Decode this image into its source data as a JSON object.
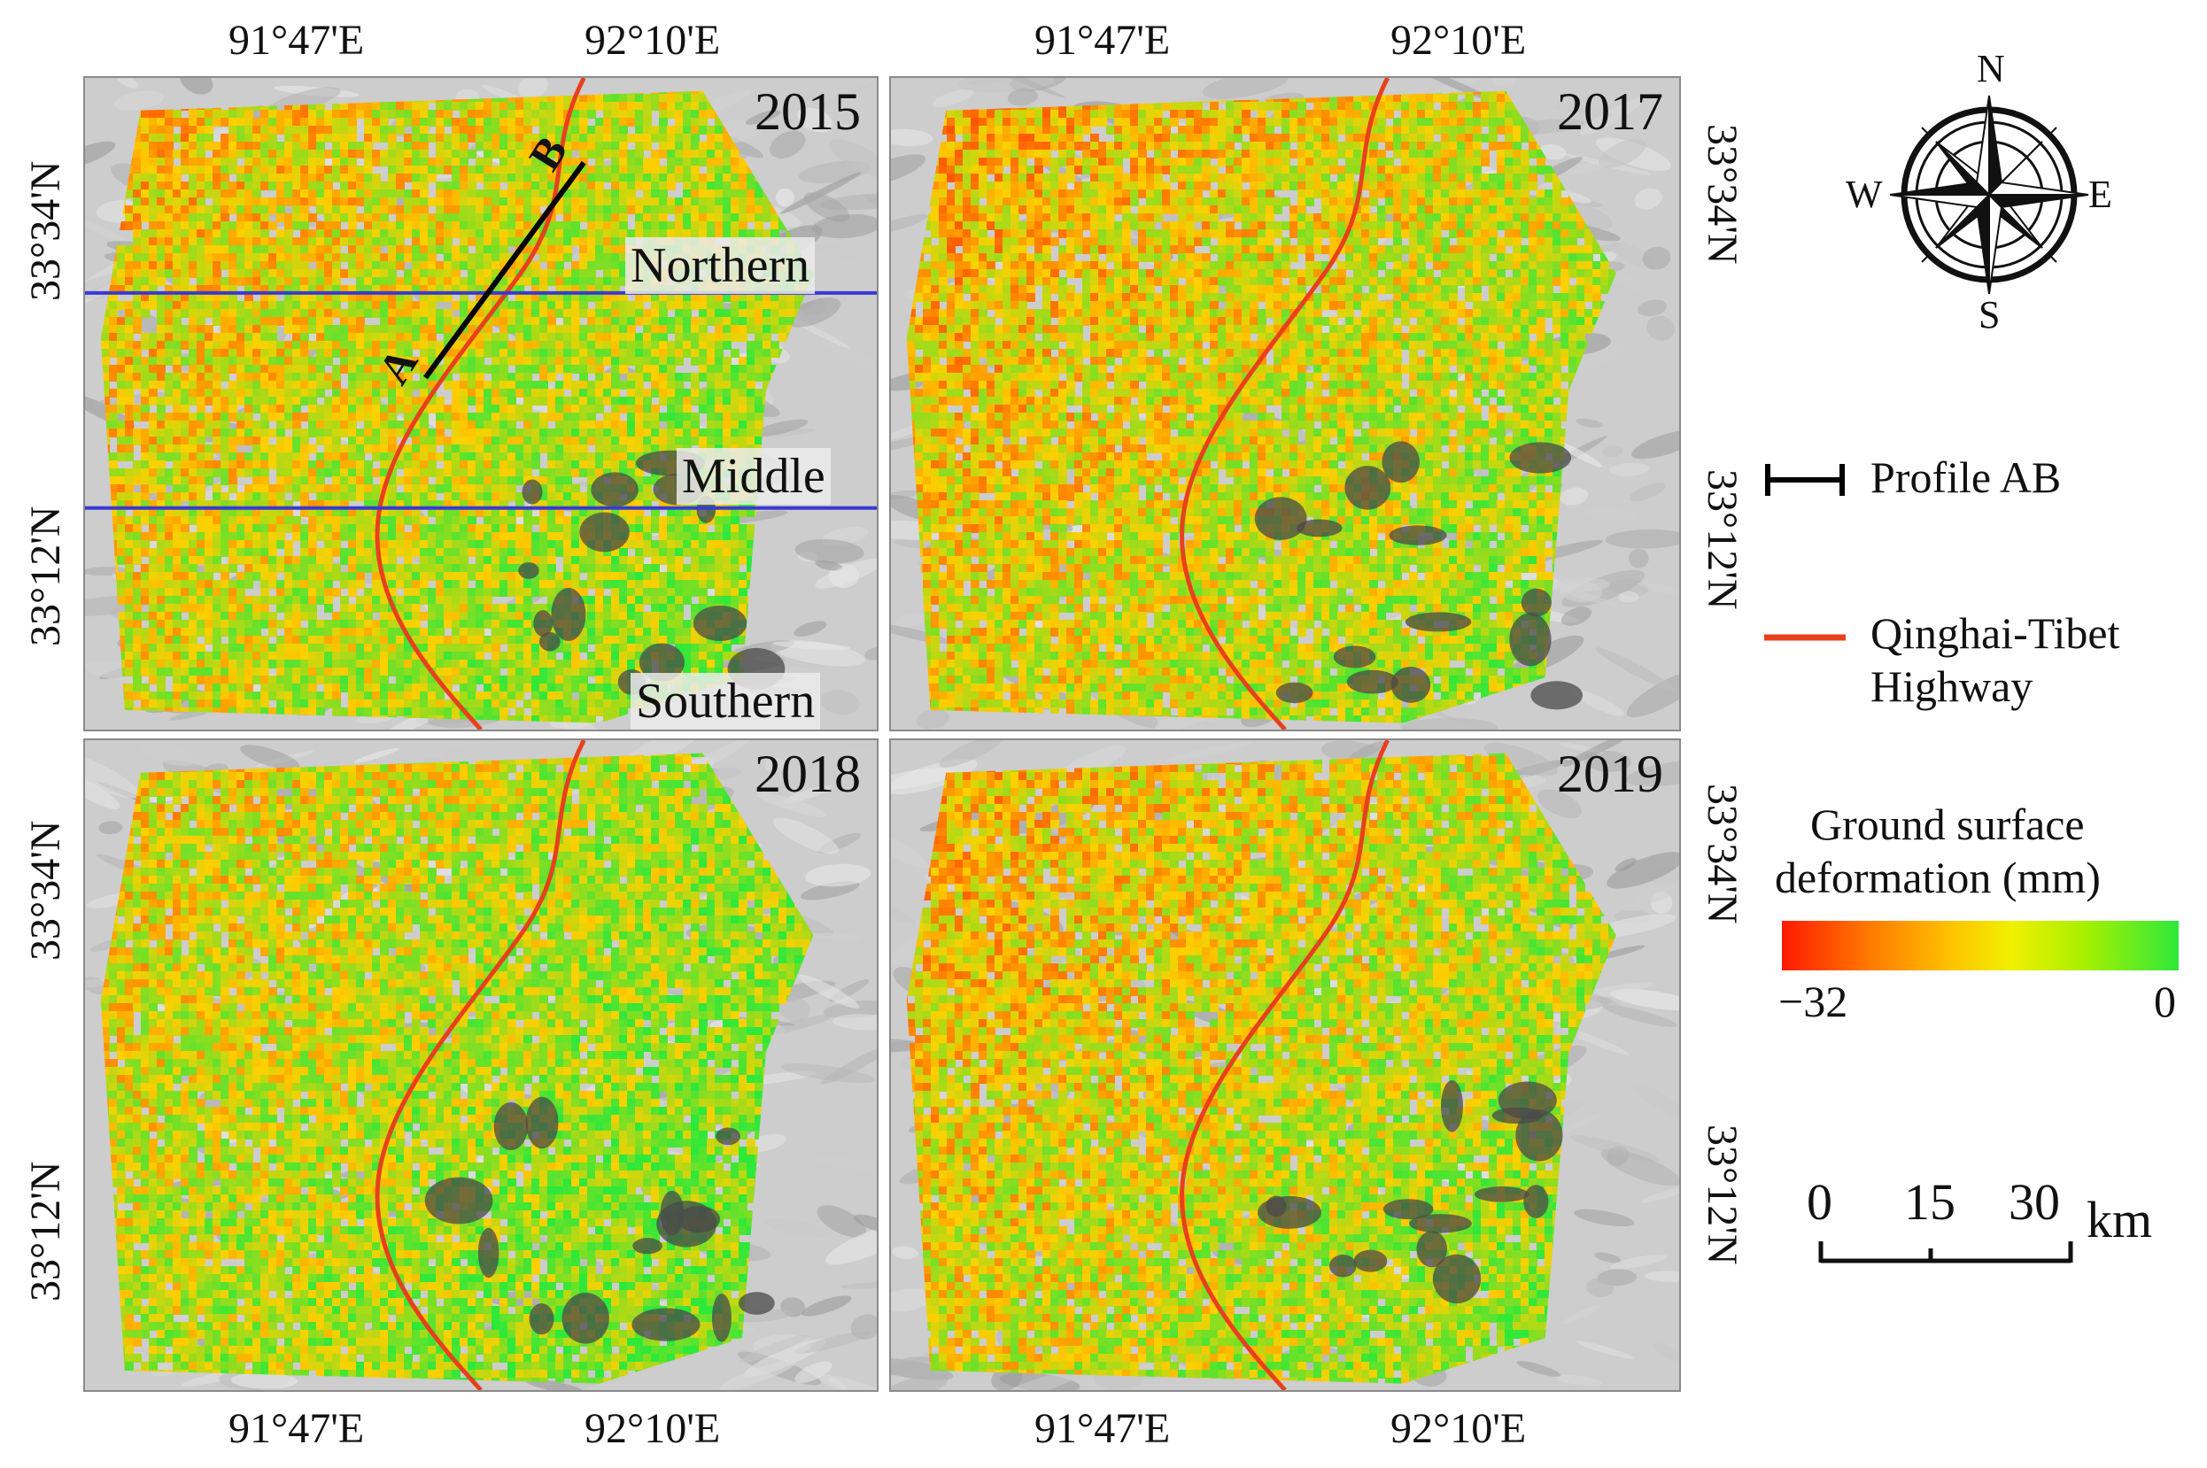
{
  "panels": [
    {
      "year": "2015",
      "regions": [
        "Northern",
        "Middle",
        "Southern"
      ],
      "profile": {
        "start": "A",
        "end": "B"
      }
    },
    {
      "year": "2017"
    },
    {
      "year": "2018"
    },
    {
      "year": "2019"
    }
  ],
  "axes": {
    "lon_ticks": [
      "91°47'E",
      "92°10'E"
    ],
    "lat_ticks": [
      "33°34'N",
      "33°12'N"
    ]
  },
  "compass": {
    "n": "N",
    "s": "S",
    "e": "E",
    "w": "W"
  },
  "legend": {
    "profile_label": "Profile AB",
    "highway_label_line1": "Qinghai-Tibet",
    "highway_label_line2": "Highway",
    "colorbar_title_line1": "Ground surface",
    "colorbar_title_line2": "deformation (mm)",
    "colorbar_min": "−32",
    "colorbar_max": "0",
    "scale_ticks": [
      "0",
      "15",
      "30"
    ],
    "scale_unit": "km"
  },
  "colors": {
    "highway": "#e8401c",
    "profile": "#000000",
    "region_line": "#3a3ad0",
    "deform_min": "#ff1a00",
    "deform_mid": "#ffd000",
    "deform_max": "#2ee83a"
  }
}
